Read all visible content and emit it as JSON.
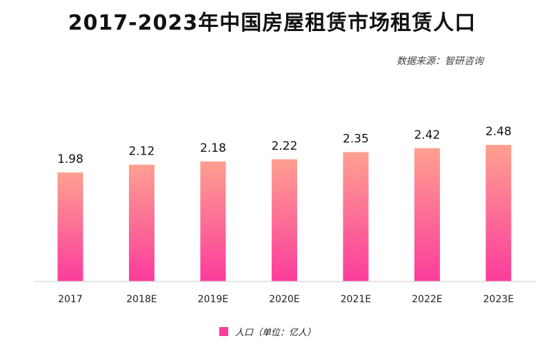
{
  "title": "2017-2023年中国房屋租赁市场租赁人口",
  "source": "数据来源：智研咨询",
  "colors": {
    "bar_top": "#fea090",
    "bar_bottom": "#fb3c9c",
    "legend": "#fa3d9c",
    "axis": "#dcdcdc",
    "text": "#222222"
  },
  "chart_data": {
    "type": "bar",
    "categories": [
      "2017",
      "2018E",
      "2019E",
      "2020E",
      "2021E",
      "2022E",
      "2023E"
    ],
    "series": [
      {
        "name": "人口（单位：亿人）",
        "values": [
          1.98,
          2.12,
          2.18,
          2.22,
          2.35,
          2.42,
          2.48
        ]
      }
    ],
    "ylim": [
      0,
      2.48
    ],
    "grid": false,
    "legend_position": "bottom-center",
    "value_labels": [
      "1.98",
      "2.12",
      "2.18",
      "2.22",
      "2.35",
      "2.42",
      "2.48"
    ]
  }
}
